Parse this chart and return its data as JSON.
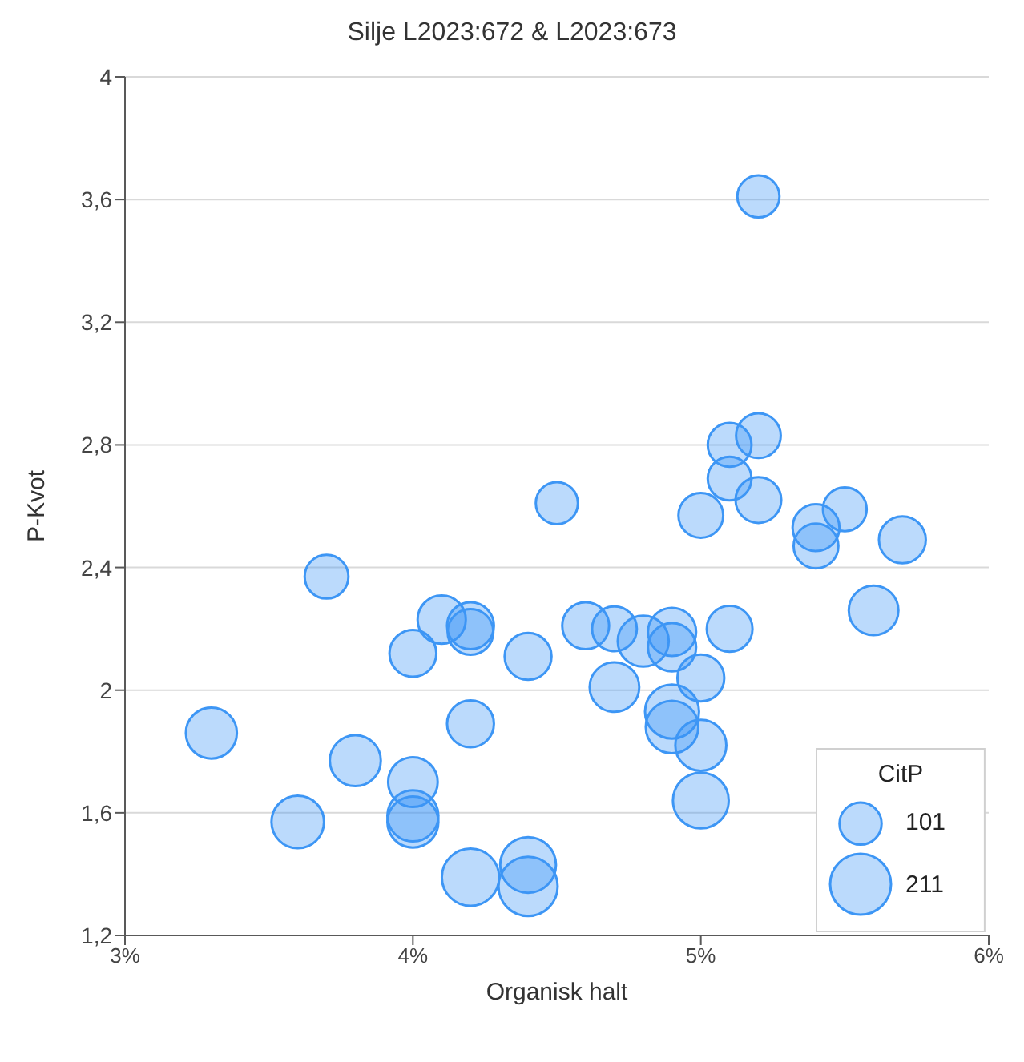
{
  "chart_data": {
    "type": "bubble",
    "title": "Silje L2023:672 & L2023:673",
    "xlabel": "Organisk halt",
    "ylabel": "P-Kvot",
    "legend_title": "CitP",
    "size_legend": [
      101,
      211
    ],
    "xlim": [
      3,
      6
    ],
    "xticks": [
      {
        "value": 3,
        "label": "3%"
      },
      {
        "value": 4,
        "label": "4%"
      },
      {
        "value": 5,
        "label": "5%"
      },
      {
        "value": 6,
        "label": "6%"
      }
    ],
    "ylim": [
      1.2,
      4
    ],
    "yticks": [
      {
        "value": 1.2,
        "label": "1,2"
      },
      {
        "value": 1.6,
        "label": "1,6"
      },
      {
        "value": 2,
        "label": "2"
      },
      {
        "value": 2.4,
        "label": "2,4"
      },
      {
        "value": 2.8,
        "label": "2,8"
      },
      {
        "value": 3.2,
        "label": "3,2"
      },
      {
        "value": 3.6,
        "label": "3,6"
      },
      {
        "value": 4,
        "label": "4"
      }
    ],
    "grid": "y",
    "series": [
      {
        "color": "#3d96f5",
        "x": [
          3.3,
          3.6,
          3.8,
          3.7,
          4.0,
          4.0,
          4.0,
          4.0,
          4.1,
          4.2,
          4.2,
          4.2,
          4.2,
          4.4,
          4.4,
          4.4,
          4.5,
          4.6,
          4.7,
          4.8,
          4.9,
          4.9,
          5.1,
          5.0,
          4.7,
          4.9,
          4.9,
          5.0,
          5.0,
          5.6,
          5.7,
          5.4,
          5.4,
          5.5,
          5.2,
          5.1,
          5.0,
          5.1,
          5.2,
          5.2
        ],
        "values": [
          1.86,
          1.57,
          1.77,
          2.37,
          1.7,
          1.59,
          1.57,
          2.12,
          2.23,
          2.21,
          2.19,
          1.89,
          1.39,
          1.43,
          1.36,
          2.11,
          2.61,
          2.21,
          2.2,
          2.16,
          2.19,
          2.14,
          2.2,
          2.04,
          2.01,
          1.93,
          1.88,
          1.82,
          1.64,
          2.26,
          2.49,
          2.53,
          2.47,
          2.59,
          2.62,
          2.69,
          2.57,
          2.8,
          2.83,
          3.61
        ],
        "sizes": [
          148,
          157,
          148,
          109,
          140,
          148,
          148,
          125,
          132,
          125,
          119,
          125,
          187,
          177,
          199,
          125,
          101,
          125,
          114,
          148,
          132,
          132,
          119,
          125,
          140,
          166,
          157,
          148,
          177,
          140,
          125,
          125,
          114,
          109,
          119,
          109,
          114,
          109,
          114,
          101
        ]
      }
    ]
  }
}
